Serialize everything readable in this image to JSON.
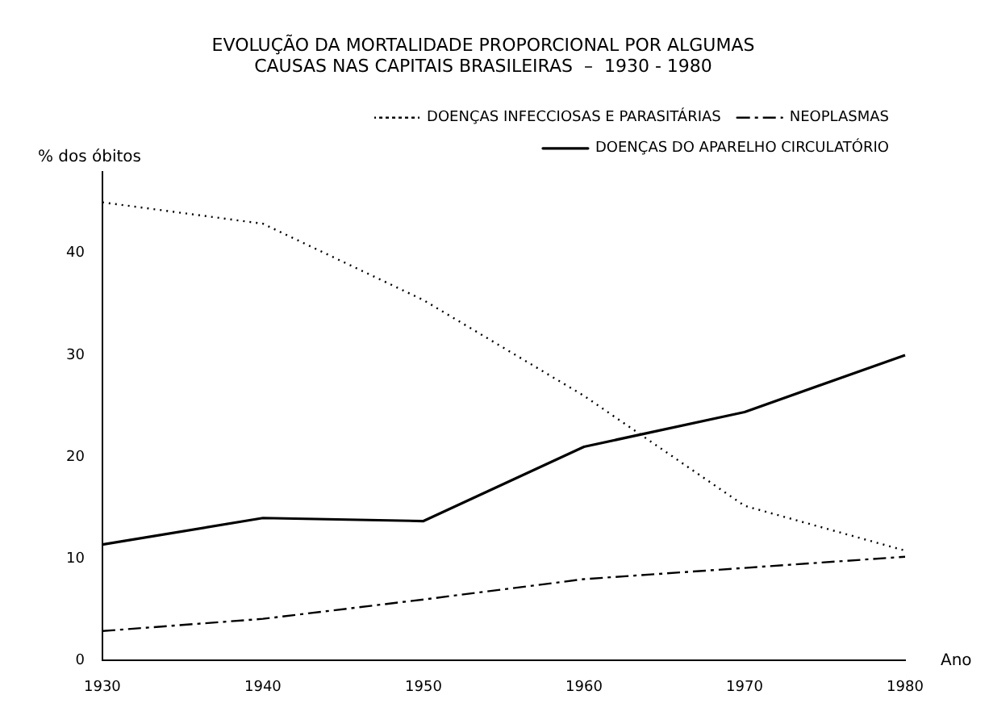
{
  "chart_data": {
    "type": "line",
    "title": "EVOLUÇÃO DA MORTALIDADE PROPORCIONAL POR ALGUMAS\nCAUSAS NAS CAPITAIS BRASILEIRAS  –  1930 - 1980",
    "xlabel": "Ano",
    "ylabel": "% dos óbitos",
    "categories": [
      "1930",
      "1940",
      "1950",
      "1960",
      "1970",
      "1980"
    ],
    "series": [
      {
        "name": "DOENÇAS INFECCIOSAS E PARASITÁRIAS",
        "color": "#000000",
        "line_style": "dotted",
        "values": [
          45,
          42.9,
          35.4,
          26,
          15.2,
          10.8
        ]
      },
      {
        "name": "NEOPLASMAS",
        "color": "#000000",
        "line_style": "dashed",
        "values": [
          2.9,
          4.1,
          6,
          8,
          9.1,
          10.2
        ]
      },
      {
        "name": "DOENÇAS DO APARELHO CIRCULATÓRIO",
        "color": "#000000",
        "line_style": "solid",
        "values": [
          11.4,
          14,
          13.7,
          21,
          24.4,
          30
        ]
      }
    ],
    "ylim": [
      0,
      48
    ],
    "yticks": [
      0,
      10,
      20,
      30,
      40
    ],
    "grid": false,
    "legend": "top right",
    "marker": "none"
  }
}
